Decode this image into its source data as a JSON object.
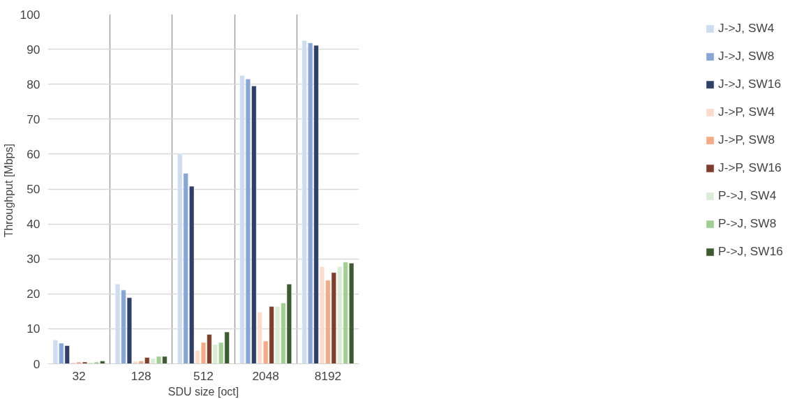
{
  "chart_data": {
    "type": "bar",
    "xlabel": "SDU size [oct]",
    "ylabel": "Throughput  [Mbps]",
    "categories": [
      "32",
      "128",
      "512",
      "2048",
      "8192"
    ],
    "ylim": [
      0,
      100
    ],
    "yticks": [
      0,
      10,
      20,
      30,
      40,
      50,
      60,
      70,
      80,
      90,
      100
    ],
    "grid": true,
    "legend": "right",
    "series": [
      {
        "name": "J->J, SW4",
        "color": "#cddcef",
        "values": [
          6.8,
          22.8,
          60,
          82.5,
          92.5
        ]
      },
      {
        "name": "J->J, SW8",
        "color": "#86a6d6",
        "values": [
          5.9,
          21.1,
          54.5,
          81.5,
          91.8
        ]
      },
      {
        "name": "J->J, SW16",
        "color": "#2f4068",
        "values": [
          5.2,
          18.9,
          50.8,
          79.5,
          91.1
        ]
      },
      {
        "name": "J->P, SW4",
        "color": "#fbdccc",
        "values": [
          0.4,
          0.7,
          3.8,
          14.8,
          27.8
        ]
      },
      {
        "name": "J->P, SW8",
        "color": "#f4aa84",
        "values": [
          0.5,
          0.8,
          6.1,
          6.5,
          23.9
        ]
      },
      {
        "name": "J->P, SW16",
        "color": "#7d3e2b",
        "values": [
          0.5,
          1.8,
          8.4,
          16.4,
          26.1
        ]
      },
      {
        "name": "P->J, SW4",
        "color": "#d9ecd5",
        "values": [
          0.4,
          1.5,
          5.5,
          16.4,
          27.8
        ]
      },
      {
        "name": "P->J, SW8",
        "color": "#a1cf92",
        "values": [
          0.5,
          2.1,
          6.1,
          17.4,
          29.1
        ]
      },
      {
        "name": "P->J, SW16",
        "color": "#3e5a30",
        "values": [
          0.8,
          2.1,
          9.1,
          22.8,
          28.8
        ]
      }
    ]
  }
}
